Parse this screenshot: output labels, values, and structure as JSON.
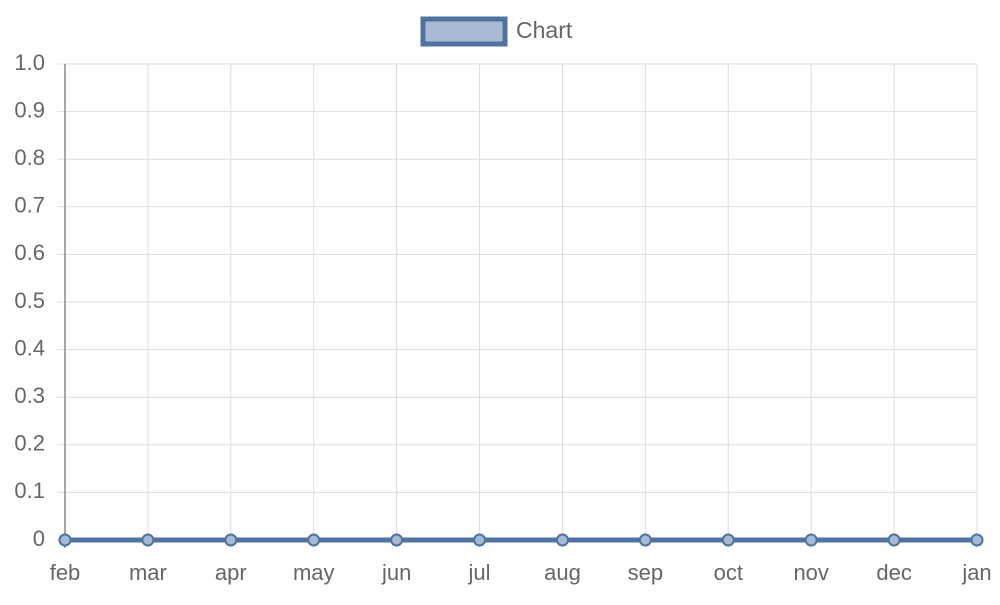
{
  "chart_data": {
    "type": "line",
    "categories": [
      "feb",
      "mar",
      "apr",
      "may",
      "jun",
      "jul",
      "aug",
      "sep",
      "oct",
      "nov",
      "dec",
      "jan"
    ],
    "series": [
      {
        "name": "Chart",
        "values": [
          0,
          0,
          0,
          0,
          0,
          0,
          0,
          0,
          0,
          0,
          0,
          0
        ],
        "color": "#4e73a0",
        "fill_color": "#a8b9d3"
      }
    ],
    "y_ticks": [
      "0",
      "0.1",
      "0.2",
      "0.3",
      "0.4",
      "0.5",
      "0.6",
      "0.7",
      "0.8",
      "0.9",
      "1.0"
    ],
    "ylim": [
      0,
      1
    ],
    "grid": true,
    "legend_position": "top-center",
    "grid_color": "#dddddd",
    "axis_color": "#888888",
    "text_color": "#666666"
  }
}
